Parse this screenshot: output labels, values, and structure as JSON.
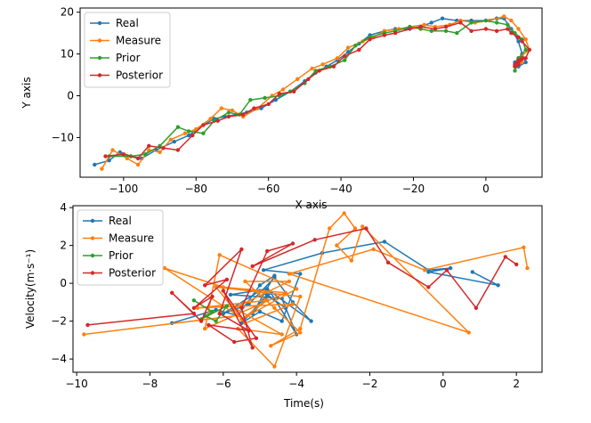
{
  "chart_data": [
    {
      "type": "line",
      "title": "",
      "xlabel": "X axis",
      "ylabel": "Y axis",
      "xlim": [
        -112,
        15.5
      ],
      "ylim": [
        -19.5,
        21
      ],
      "xticks": [
        -100,
        -80,
        -60,
        -40,
        -20,
        0
      ],
      "yticks": [
        -10,
        0,
        10,
        20
      ],
      "legend_position": "upper-left",
      "series": [
        {
          "name": "Real",
          "color": "#1f77b4",
          "x": [
            -108,
            -104,
            -101,
            -98,
            -95,
            -91,
            -86,
            -82,
            -78,
            -75,
            -72,
            -69,
            -66,
            -62,
            -58,
            -54,
            -50,
            -47,
            -44,
            -41,
            -38,
            -35,
            -32,
            -28,
            -25,
            -22,
            -18,
            -15,
            -12,
            -8,
            -4,
            0,
            3,
            5,
            7,
            9,
            10,
            11,
            9,
            8,
            9,
            10
          ],
          "y": [
            -16.5,
            -15.5,
            -13.5,
            -14.5,
            -15,
            -13,
            -11,
            -9.5,
            -7,
            -5.5,
            -5,
            -4.5,
            -4,
            -3,
            -1,
            1,
            3.5,
            5.5,
            7,
            8.5,
            10.5,
            12.5,
            14.5,
            15.5,
            16,
            16,
            16.5,
            17.5,
            18.5,
            18,
            18,
            18,
            18.5,
            18.5,
            16,
            13,
            10,
            8,
            7,
            8,
            9,
            8
          ]
        },
        {
          "name": "Measure",
          "color": "#ff7f0e",
          "x": [
            -106,
            -103,
            -99,
            -96,
            -93,
            -90,
            -87,
            -83,
            -80,
            -76,
            -73,
            -70,
            -67,
            -63,
            -59,
            -56,
            -52,
            -48,
            -45,
            -41,
            -38,
            -34,
            -31,
            -28,
            -24,
            -21,
            -17,
            -14,
            -10,
            -7,
            -3,
            1,
            5,
            7,
            9,
            11,
            12,
            9,
            8,
            9,
            10
          ],
          "y": [
            -17.5,
            -13,
            -15,
            -16.5,
            -13,
            -13.5,
            -10.5,
            -9,
            -8,
            -5.5,
            -3,
            -3.5,
            -5,
            -3,
            0,
            1.5,
            4,
            6.5,
            7.5,
            9,
            11.5,
            13,
            14,
            15.5,
            16,
            16.5,
            17,
            16.5,
            17,
            18,
            17.5,
            18,
            19,
            18,
            16,
            13.5,
            11,
            9,
            7,
            7.5,
            8
          ]
        },
        {
          "name": "Prior",
          "color": "#2ca02c",
          "x": [
            -104,
            -98,
            -94,
            -90,
            -85,
            -82,
            -78,
            -75,
            -71,
            -68,
            -65,
            -61,
            -57,
            -54,
            -50,
            -47,
            -43,
            -39,
            -36,
            -32,
            -28,
            -25,
            -21,
            -18,
            -15,
            -11,
            -8,
            -4,
            0,
            3,
            6,
            8,
            10,
            11,
            9,
            8,
            9,
            10
          ],
          "y": [
            -14.5,
            -14.5,
            -14,
            -12,
            -7.5,
            -8.5,
            -9,
            -6,
            -4,
            -4.5,
            -1,
            -0.5,
            0,
            1,
            3,
            6,
            7,
            8.5,
            12,
            14,
            15,
            15.5,
            16.5,
            16,
            15.5,
            15.5,
            15,
            17.5,
            18,
            17.5,
            17,
            15,
            13.5,
            11,
            9,
            6,
            8,
            9
          ]
        },
        {
          "name": "Posterior",
          "color": "#d62728",
          "x": [
            -105,
            -100,
            -96,
            -93,
            -89,
            -85,
            -81,
            -78,
            -74,
            -71,
            -67,
            -64,
            -60,
            -57,
            -53,
            -49,
            -46,
            -42,
            -39,
            -35,
            -32,
            -28,
            -25,
            -21,
            -18,
            -14,
            -11,
            -7,
            -4,
            0,
            3,
            6,
            7,
            9,
            10,
            12,
            11,
            9,
            8,
            8,
            9,
            10,
            9,
            8
          ],
          "y": [
            -14.5,
            -14,
            -15,
            -12,
            -12.5,
            -13,
            -9.5,
            -7,
            -6,
            -5,
            -4.5,
            -3,
            -2,
            0.5,
            1,
            4,
            6,
            7,
            9.5,
            11,
            13.5,
            14.5,
            15,
            16,
            16.5,
            16,
            16.5,
            17.5,
            15.5,
            16,
            15.5,
            16,
            15,
            14,
            13,
            11,
            9,
            8,
            7,
            7.5,
            8.5,
            9,
            7.5,
            7
          ]
        }
      ]
    },
    {
      "type": "line",
      "title": "",
      "xlabel": "Time(s)",
      "ylabel": "Velocity(m·s⁻¹)",
      "xlim": [
        -10.1,
        2.7
      ],
      "ylim": [
        -4.7,
        4.1
      ],
      "xticks": [
        -10,
        -8,
        -6,
        -4,
        -2,
        0,
        2
      ],
      "yticks": [
        -4,
        -2,
        0,
        2,
        4
      ],
      "legend_position": "upper-left",
      "series": [
        {
          "name": "Real",
          "color": "#1f77b4",
          "x": [
            -7.4,
            -6.2,
            -5.6,
            -5.0,
            -4.6,
            -5.2,
            -4.7,
            -4.0,
            -4.4,
            -5.8,
            -4.8,
            -3.6,
            -4.1,
            -4.6,
            -5.3,
            -6.0,
            -5.0,
            -4.3,
            -4.8,
            -5.5,
            -5.0,
            -4.4,
            -3.9,
            -4.9,
            -3.3,
            -1.6,
            -0.4,
            0.2,
            -0.4,
            1.5,
            0.8
          ],
          "y": [
            -2.1,
            -1.4,
            -1.7,
            -0.1,
            0.4,
            -1.6,
            -0.5,
            -2.7,
            -0.8,
            -0.6,
            -0.3,
            -2.0,
            -1.0,
            0.3,
            -1.1,
            -1.6,
            -0.4,
            -1.3,
            -0.6,
            -2.1,
            -1.5,
            -2.0,
            0.5,
            0.7,
            1.6,
            2.2,
            0.7,
            0.8,
            0.6,
            -0.1,
            0.6
          ]
        },
        {
          "name": "Measure",
          "color": "#ff7f0e",
          "x": [
            -9.8,
            -5.6,
            -7.6,
            -6.0,
            -4.3,
            -6.5,
            -6.1,
            -4.0,
            -5.5,
            -4.8,
            -6.7,
            -4.1,
            -5.4,
            -6.2,
            -3.9,
            -4.6,
            -5.6,
            -4.4,
            -5.7,
            -4.2,
            -5.4,
            -4.6,
            -3.9,
            -4.7,
            -3.9,
            -3.1,
            -2.7,
            -2.4,
            -2.9,
            -2.5,
            -2.2,
            0.7,
            -4.2,
            -1.9,
            -0.5,
            2.2,
            2.3
          ],
          "y": [
            -2.7,
            -1.7,
            0.8,
            -0.2,
            -0.5,
            -2.4,
            1.5,
            -0.3,
            -1.9,
            -0.9,
            -1.3,
            -1.1,
            -2.1,
            -0.2,
            -0.7,
            -4.4,
            -2.4,
            -2.7,
            -1.3,
            0.1,
            0.1,
            -1.3,
            -2.6,
            -3.3,
            -2.4,
            2.9,
            3.7,
            2.9,
            2.0,
            1.2,
            3.0,
            -2.6,
            0.5,
            1.8,
            0.7,
            1.9,
            0.8
          ]
        },
        {
          "name": "Prior",
          "color": "#2ca02c",
          "x": [
            -6.8,
            -6.3,
            -6.6,
            -5.9,
            -6.2,
            -6.5
          ],
          "y": [
            -0.9,
            -1.5,
            -1.9,
            -1.2,
            -2.0,
            -1.7
          ]
        },
        {
          "name": "Posterior",
          "color": "#d62728",
          "x": [
            -9.7,
            -6.8,
            -7.4,
            -6.6,
            -6.3,
            -6.8,
            -5.9,
            -6.5,
            -5.5,
            -6.1,
            -5.3,
            -6.4,
            -5.7,
            -5.1,
            -6.0,
            -5.2,
            -5.5,
            -4.8,
            -4.1,
            -5.2,
            -3.5,
            -2.1,
            -1.5,
            -0.4,
            0.1,
            0.9,
            1.7,
            2.0
          ],
          "y": [
            -2.2,
            -1.6,
            -0.5,
            -2.0,
            -0.7,
            -1.3,
            0.2,
            -0.1,
            1.8,
            -1.6,
            -2.5,
            -2.2,
            -3.1,
            -2.9,
            -0.4,
            -3.4,
            -1.3,
            1.7,
            2.1,
            0.9,
            2.3,
            2.9,
            1.1,
            -0.2,
            0.7,
            -1.3,
            1.4,
            1.0
          ]
        }
      ]
    }
  ]
}
